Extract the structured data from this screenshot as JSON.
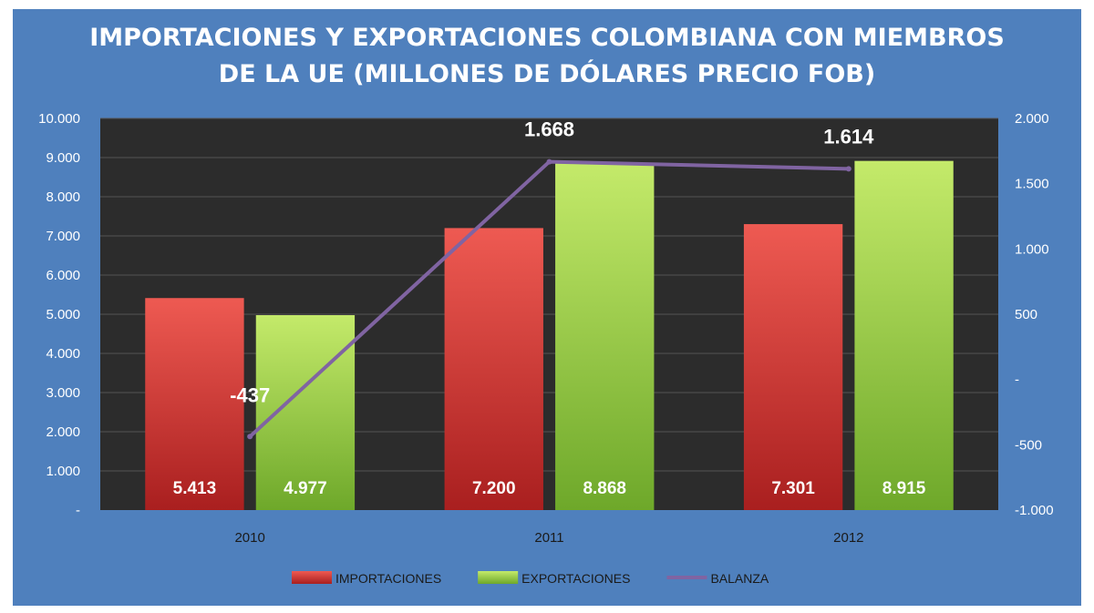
{
  "chart_data": {
    "type": "bar",
    "title": "IMPORTACIONES Y EXPORTACIONES COLOMBIANA CON MIEMBROS DE LA UE (MILLONES DE DÓLARES PRECIO FOB)",
    "title_lines": [
      "IMPORTACIONES Y EXPORTACIONES COLOMBIANA CON MIEMBROS",
      "DE LA UE (MILLONES DE DÓLARES PRECIO FOB)"
    ],
    "categories": [
      "2010",
      "2011",
      "2012"
    ],
    "series": [
      {
        "name": "IMPORTACIONES",
        "type": "bar",
        "axis": "left",
        "color": "#d93434",
        "values": [
          5413,
          7200,
          7301
        ],
        "labels": [
          "5.413",
          "7.200",
          "7.301"
        ]
      },
      {
        "name": "EXPORTACIONES",
        "type": "bar",
        "axis": "left",
        "color": "#9bd33c",
        "values": [
          4977,
          8868,
          8915
        ],
        "labels": [
          "4.977",
          "8.868",
          "8.915"
        ]
      },
      {
        "name": "BALANZA",
        "type": "line",
        "axis": "right",
        "color": "#8064a2",
        "values": [
          -437,
          1668,
          1614
        ],
        "labels": [
          "-437",
          "1.668",
          "1.614"
        ]
      }
    ],
    "y_left": {
      "ylim": [
        0,
        10000
      ],
      "ticks": [
        "-",
        "1.000",
        "2.000",
        "3.000",
        "4.000",
        "5.000",
        "6.000",
        "7.000",
        "8.000",
        "9.000",
        "10.000"
      ]
    },
    "y_right": {
      "ylim": [
        -1000,
        2000
      ],
      "ticks": [
        "-1.000",
        "-500",
        "-",
        "500",
        "1.000",
        "1.500",
        "2.000"
      ]
    },
    "grid": true,
    "legend_position": "bottom",
    "colors": {
      "background": "#4f80bd",
      "plot_area": "#2c2c2c",
      "grid": "#555555"
    }
  }
}
